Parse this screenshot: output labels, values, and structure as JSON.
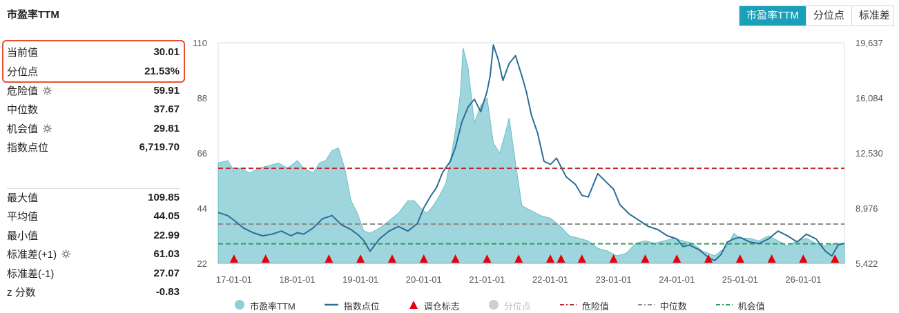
{
  "title": "市盈率TTM",
  "tabs": [
    "市盈率TTM",
    "分位点",
    "标准差"
  ],
  "stats": [
    {
      "label": "当前值",
      "value": "30.01",
      "gear": false
    },
    {
      "label": "分位点",
      "value": "21.53%",
      "gear": false
    },
    {
      "label": "危险值",
      "value": "59.91",
      "gear": true
    },
    {
      "label": "中位数",
      "value": "37.67",
      "gear": false
    },
    {
      "label": "机会值",
      "value": "29.81",
      "gear": true
    },
    {
      "label": "指数点位",
      "value": "6,719.70",
      "gear": false
    },
    {
      "label": "最大值",
      "value": "109.85",
      "gear": false
    },
    {
      "label": "平均值",
      "value": "44.05",
      "gear": false
    },
    {
      "label": "最小值",
      "value": "22.99",
      "gear": false
    },
    {
      "label": "标准差(+1)",
      "value": "61.03",
      "gear": true
    },
    {
      "label": "标准差(-1)",
      "value": "27.07",
      "gear": false
    },
    {
      "label": "z 分数",
      "value": "-0.83",
      "gear": false
    }
  ],
  "legend": {
    "pe": "市盈率TTM",
    "index": "指数点位",
    "rebalance": "调仓标志",
    "percentile": "分位点",
    "danger": "危险值",
    "median": "中位数",
    "opportunity": "机会值"
  },
  "colors": {
    "pe_fill": "#8ecfd7",
    "pe_line": "#6bbdc8",
    "index_line": "#2a6e96",
    "danger": "#c0282a",
    "median": "#8a8a8a",
    "opportunity": "#2aa05a",
    "marker": "#e8000b",
    "tab_active": "#1aa0b8"
  },
  "chart_data": {
    "type": "area",
    "x_ticks": [
      "17-01-01",
      "18-01-01",
      "19-01-01",
      "20-01-01",
      "21-01-01",
      "22-01-01",
      "23-01-01",
      "24-01-01",
      "25-01-01",
      "26-01-01"
    ],
    "y_left_ticks": [
      "22",
      "44",
      "66",
      "88",
      "110"
    ],
    "y_left_range": [
      22,
      110
    ],
    "y_right_ticks": [
      "5,422",
      "8,976",
      "12,530",
      "16,084",
      "19,637"
    ],
    "y_right_range": [
      5422,
      19637
    ],
    "x_range": [
      2016.75,
      2026.65
    ],
    "series": [
      {
        "name": "市盈率TTM",
        "axis": "left",
        "style": "area",
        "x": [
          2016.75,
          2016.9,
          2017.0,
          2017.1,
          2017.25,
          2017.4,
          2017.55,
          2017.7,
          2017.85,
          2018.0,
          2018.1,
          2018.25,
          2018.35,
          2018.45,
          2018.55,
          2018.65,
          2018.75,
          2018.85,
          2018.95,
          2019.05,
          2019.15,
          2019.3,
          2019.45,
          2019.6,
          2019.75,
          2019.85,
          2019.95,
          2020.05,
          2020.15,
          2020.25,
          2020.35,
          2020.42,
          2020.5,
          2020.58,
          2020.62,
          2020.7,
          2020.8,
          2020.9,
          2021.0,
          2021.1,
          2021.2,
          2021.3,
          2021.35,
          2021.45,
          2021.55,
          2021.7,
          2021.85,
          2022.0,
          2022.15,
          2022.3,
          2022.45,
          2022.6,
          2022.75,
          2022.9,
          2023.05,
          2023.2,
          2023.35,
          2023.5,
          2023.65,
          2023.8,
          2023.95,
          2024.1,
          2024.25,
          2024.4,
          2024.5,
          2024.6,
          2024.7,
          2024.8,
          2024.9,
          2025.0,
          2025.15,
          2025.3,
          2025.45,
          2025.6,
          2025.75,
          2025.9,
          2026.05,
          2026.2,
          2026.35,
          2026.5,
          2026.65
        ],
        "y": [
          62,
          63,
          59,
          60,
          58,
          60,
          61,
          62,
          60,
          63,
          60,
          58,
          62,
          63,
          67,
          68,
          60,
          47,
          42,
          35,
          34,
          36,
          39,
          42,
          47,
          47,
          44,
          42,
          45,
          49,
          54,
          63,
          75,
          90,
          108,
          100,
          78,
          85,
          88,
          70,
          66,
          75,
          80,
          62,
          45,
          43,
          41,
          40,
          37,
          33,
          32,
          31,
          28,
          27,
          25,
          26,
          30,
          31,
          30,
          31,
          32,
          31,
          30,
          27,
          26,
          25,
          27,
          29,
          34,
          32,
          32,
          31,
          33,
          31,
          29,
          31,
          32,
          30,
          29,
          30,
          30
        ]
      },
      {
        "name": "指数点位",
        "axis": "right",
        "style": "line",
        "x": [
          2016.75,
          2016.9,
          2017.0,
          2017.15,
          2017.3,
          2017.45,
          2017.6,
          2017.75,
          2017.9,
          2018.0,
          2018.1,
          2018.25,
          2018.4,
          2018.55,
          2018.7,
          2018.85,
          2018.95,
          2019.05,
          2019.15,
          2019.3,
          2019.45,
          2019.6,
          2019.75,
          2019.9,
          2020.0,
          2020.1,
          2020.2,
          2020.3,
          2020.42,
          2020.5,
          2020.6,
          2020.7,
          2020.8,
          2020.9,
          2021.0,
          2021.05,
          2021.1,
          2021.18,
          2021.25,
          2021.35,
          2021.45,
          2021.55,
          2021.62,
          2021.7,
          2021.8,
          2021.9,
          2022.0,
          2022.1,
          2022.25,
          2022.4,
          2022.5,
          2022.6,
          2022.75,
          2022.9,
          2023.0,
          2023.1,
          2023.25,
          2023.4,
          2023.55,
          2023.7,
          2023.85,
          2024.0,
          2024.1,
          2024.2,
          2024.35,
          2024.5,
          2024.6,
          2024.7,
          2024.8,
          2024.9,
          2025.0,
          2025.15,
          2025.3,
          2025.45,
          2025.6,
          2025.75,
          2025.9,
          2026.05,
          2026.2,
          2026.35,
          2026.45,
          2026.55,
          2026.65
        ],
        "y": [
          8700,
          8500,
          8200,
          7700,
          7400,
          7200,
          7300,
          7500,
          7200,
          7400,
          7300,
          7700,
          8300,
          8500,
          7900,
          7600,
          7300,
          6900,
          6200,
          7000,
          7500,
          7800,
          7500,
          8000,
          9000,
          9700,
          10300,
          11300,
          12000,
          12900,
          14500,
          15500,
          16000,
          15200,
          16500,
          17500,
          19500,
          18500,
          17200,
          18300,
          18800,
          17500,
          16500,
          15000,
          13800,
          12000,
          11800,
          12200,
          11000,
          10500,
          9800,
          9700,
          11200,
          10600,
          10200,
          9200,
          8600,
          8200,
          7800,
          7600,
          7200,
          7000,
          6500,
          6600,
          6300,
          5800,
          5600,
          6000,
          6800,
          7000,
          7100,
          6800,
          6700,
          7000,
          7500,
          7200,
          6800,
          7300,
          7000,
          6200,
          5900,
          6600,
          6720
        ]
      }
    ],
    "reference_lines": [
      {
        "name": "危险值",
        "value": 59.91
      },
      {
        "name": "中位数",
        "value": 37.67
      },
      {
        "name": "机会值",
        "value": 29.81
      }
    ],
    "rebalance_markers_x": [
      2017.0,
      2017.5,
      2018.5,
      2019.0,
      2019.5,
      2020.0,
      2020.5,
      2021.0,
      2021.5,
      2022.0,
      2022.17,
      2022.5,
      2023.0,
      2023.5,
      2024.0,
      2024.5,
      2025.0,
      2025.5,
      2026.0,
      2026.5
    ]
  }
}
